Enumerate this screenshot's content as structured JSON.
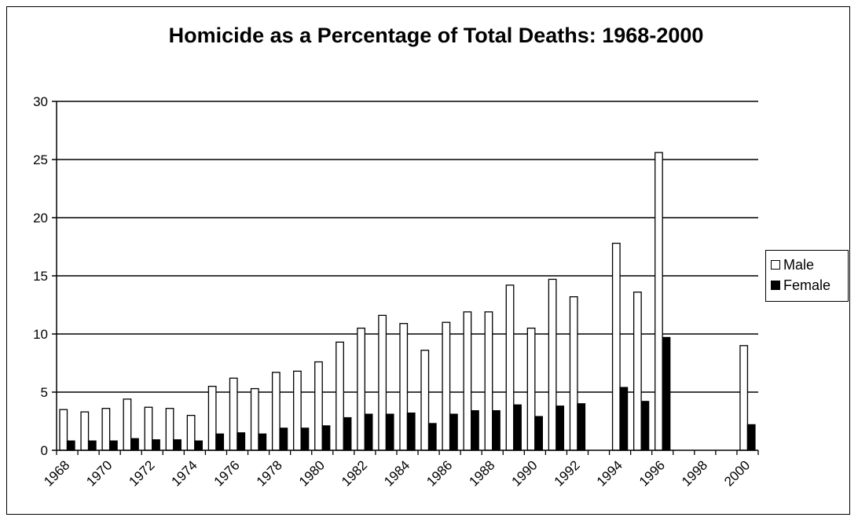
{
  "chart_data": {
    "type": "bar",
    "title": "Homicide as a Percentage of Total Deaths: 1968-2000",
    "xlabel": "",
    "ylabel": "",
    "ylim": [
      0,
      30
    ],
    "yticks": [
      "0",
      "5",
      "10",
      "15",
      "20",
      "25",
      "30"
    ],
    "grid": true,
    "legend_position": "right",
    "categories": [
      1968,
      1969,
      1970,
      1971,
      1972,
      1973,
      1974,
      1975,
      1976,
      1977,
      1978,
      1979,
      1980,
      1981,
      1982,
      1983,
      1984,
      1985,
      1986,
      1987,
      1988,
      1989,
      1990,
      1991,
      1992,
      1993,
      1994,
      1995,
      1996,
      1997,
      1998,
      1999,
      2000
    ],
    "xtick_labels": [
      "1968",
      "1970",
      "1972",
      "1974",
      "1976",
      "1978",
      "1980",
      "1982",
      "1984",
      "1986",
      "1988",
      "1990",
      "1992",
      "1994",
      "1996",
      "1998",
      "2000"
    ],
    "series": [
      {
        "name": "Male",
        "color": "#ffffff",
        "values": [
          3.5,
          3.3,
          3.6,
          4.4,
          3.7,
          3.6,
          3.0,
          5.5,
          6.2,
          5.3,
          6.7,
          6.8,
          7.6,
          9.3,
          10.5,
          11.6,
          10.9,
          8.6,
          11.0,
          11.9,
          11.9,
          14.2,
          10.5,
          14.7,
          13.2,
          0,
          17.8,
          13.6,
          25.6,
          0,
          0,
          0,
          9.0
        ]
      },
      {
        "name": "Female",
        "color": "#000000",
        "values": [
          0.8,
          0.8,
          0.8,
          1.0,
          0.9,
          0.9,
          0.8,
          1.4,
          1.5,
          1.4,
          1.9,
          1.9,
          2.1,
          2.8,
          3.1,
          3.1,
          3.2,
          2.3,
          3.1,
          3.4,
          3.4,
          3.9,
          2.9,
          3.8,
          4.0,
          0,
          5.4,
          4.2,
          9.7,
          0,
          0,
          0,
          2.2
        ]
      }
    ]
  }
}
